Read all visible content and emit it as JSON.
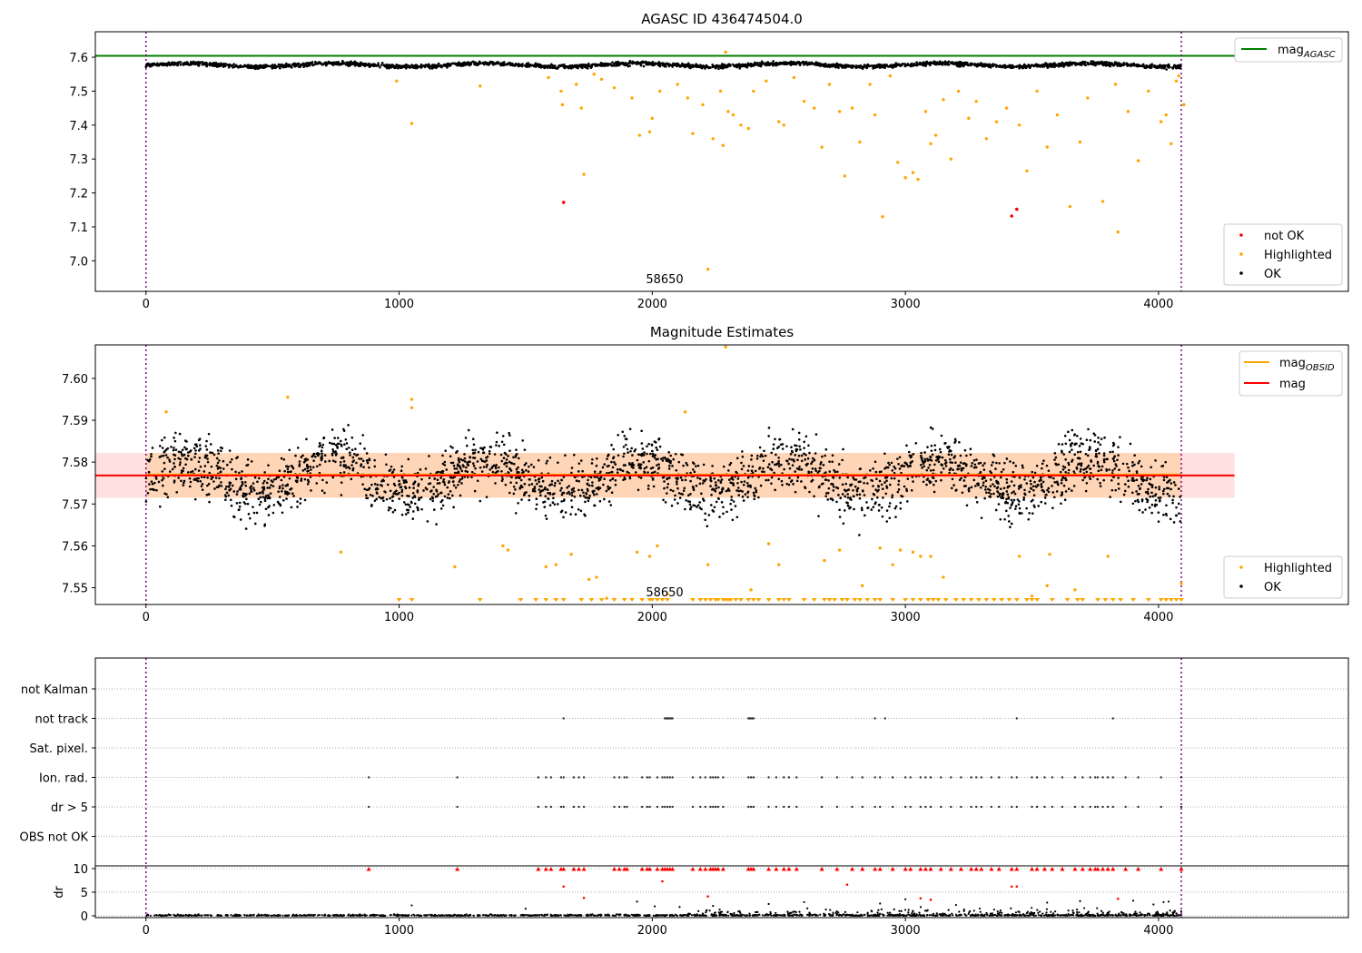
{
  "chart_data": [
    {
      "type": "scatter",
      "title": "AGASC ID 436474504.0",
      "xlim": [
        -200,
        4750
      ],
      "ylim": [
        6.91,
        7.675
      ],
      "xticks": [
        0,
        1000,
        2000,
        3000,
        4000
      ],
      "yticks": [
        7.0,
        7.1,
        7.2,
        7.3,
        7.4,
        7.5,
        7.6
      ],
      "ytick_labels": [
        "7.0",
        "7.1",
        "7.2",
        "7.3",
        "7.4",
        "7.5",
        "7.6"
      ],
      "annotation": {
        "text": "58650",
        "x": 2040,
        "y": 6.95
      },
      "vlines": [
        0,
        4090
      ],
      "hlines": [
        {
          "name": "mag_AGASC",
          "y": 7.604,
          "x": [
            -200,
            4300
          ],
          "color": "#008000"
        }
      ],
      "legend_upper": {
        "position": "top-right",
        "entries": [
          {
            "label": "mag",
            "sub": "AGASC",
            "kind": "line",
            "color": "#008000"
          }
        ]
      },
      "legend_lower": {
        "position": "bottom-right",
        "entries": [
          {
            "label": "not OK",
            "kind": "dot",
            "color": "#ff0000"
          },
          {
            "label": "Highlighted",
            "kind": "dot",
            "color": "#ffa500"
          },
          {
            "label": "OK",
            "kind": "dot",
            "color": "#000000"
          }
        ]
      },
      "ok_band": {
        "x": [
          0,
          4090
        ],
        "center": 7.577,
        "amplitude": 0.005,
        "noise": 0.004
      },
      "highlighted": [
        [
          1050,
          7.405
        ],
        [
          990,
          7.53
        ],
        [
          1320,
          7.515
        ],
        [
          1590,
          7.54
        ],
        [
          1640,
          7.5
        ],
        [
          1645,
          7.46
        ],
        [
          1700,
          7.52
        ],
        [
          1720,
          7.45
        ],
        [
          1730,
          7.255
        ],
        [
          1770,
          7.55
        ],
        [
          1800,
          7.535
        ],
        [
          1850,
          7.51
        ],
        [
          1920,
          7.48
        ],
        [
          1950,
          7.37
        ],
        [
          1990,
          7.38
        ],
        [
          2000,
          7.42
        ],
        [
          2030,
          7.5
        ],
        [
          2100,
          7.52
        ],
        [
          2140,
          7.48
        ],
        [
          2160,
          7.375
        ],
        [
          2200,
          7.46
        ],
        [
          2220,
          6.975
        ],
        [
          2240,
          7.36
        ],
        [
          2270,
          7.5
        ],
        [
          2280,
          7.34
        ],
        [
          2290,
          7.615
        ],
        [
          2300,
          7.44
        ],
        [
          2320,
          7.43
        ],
        [
          2350,
          7.4
        ],
        [
          2380,
          7.39
        ],
        [
          2400,
          7.5
        ],
        [
          2450,
          7.53
        ],
        [
          2500,
          7.41
        ],
        [
          2520,
          7.4
        ],
        [
          2560,
          7.54
        ],
        [
          2600,
          7.47
        ],
        [
          2640,
          7.45
        ],
        [
          2670,
          7.335
        ],
        [
          2700,
          7.52
        ],
        [
          2740,
          7.44
        ],
        [
          2760,
          7.25
        ],
        [
          2790,
          7.45
        ],
        [
          2820,
          7.35
        ],
        [
          2860,
          7.52
        ],
        [
          2880,
          7.43
        ],
        [
          2910,
          7.13
        ],
        [
          2940,
          7.545
        ],
        [
          2970,
          7.29
        ],
        [
          3000,
          7.245
        ],
        [
          3030,
          7.26
        ],
        [
          3050,
          7.24
        ],
        [
          3080,
          7.44
        ],
        [
          3100,
          7.345
        ],
        [
          3120,
          7.37
        ],
        [
          3150,
          7.475
        ],
        [
          3180,
          7.3
        ],
        [
          3210,
          7.5
        ],
        [
          3250,
          7.42
        ],
        [
          3280,
          7.47
        ],
        [
          3320,
          7.36
        ],
        [
          3360,
          7.41
        ],
        [
          3400,
          7.45
        ],
        [
          3450,
          7.4
        ],
        [
          3480,
          7.265
        ],
        [
          3520,
          7.5
        ],
        [
          3560,
          7.335
        ],
        [
          3600,
          7.43
        ],
        [
          3650,
          7.16
        ],
        [
          3690,
          7.35
        ],
        [
          3720,
          7.48
        ],
        [
          3780,
          7.175
        ],
        [
          3830,
          7.52
        ],
        [
          3840,
          7.085
        ],
        [
          3880,
          7.44
        ],
        [
          3920,
          7.295
        ],
        [
          3960,
          7.5
        ],
        [
          4010,
          7.41
        ],
        [
          4030,
          7.43
        ],
        [
          4050,
          7.345
        ],
        [
          4070,
          7.53
        ],
        [
          4080,
          7.545
        ],
        [
          4100,
          7.46
        ]
      ],
      "not_ok": [
        [
          1650,
          7.172
        ],
        [
          3420,
          7.132
        ],
        [
          3440,
          7.152
        ]
      ]
    },
    {
      "type": "scatter",
      "title": "Magnitude Estimates",
      "xlim": [
        -200,
        4750
      ],
      "ylim": [
        7.546,
        7.608
      ],
      "xticks": [
        0,
        1000,
        2000,
        3000,
        4000
      ],
      "yticks": [
        7.55,
        7.56,
        7.57,
        7.58,
        7.59,
        7.6
      ],
      "ytick_labels": [
        "7.55",
        "7.56",
        "7.57",
        "7.58",
        "7.59",
        "7.60"
      ],
      "annotation": {
        "text": "58650",
        "x": 2040,
        "y": 7.5475
      },
      "vlines": [
        0,
        4090
      ],
      "mag_line": {
        "y": 7.5768,
        "x": [
          -200,
          4300
        ],
        "band": [
          7.5715,
          7.5822
        ],
        "color": "#ff0000"
      },
      "mag_obsid": {
        "y": 7.5768,
        "x": [
          0,
          4090
        ],
        "band": [
          7.5715,
          7.5822
        ],
        "color": "#ffa500"
      },
      "legend_upper": {
        "position": "top-right",
        "entries": [
          {
            "label": "mag",
            "sub": "OBSID",
            "kind": "line",
            "color": "#ffa500"
          },
          {
            "label": "mag",
            "sub": "",
            "kind": "line",
            "color": "#ff0000"
          }
        ]
      },
      "legend_lower": {
        "position": "bottom-right",
        "entries": [
          {
            "label": "Highlighted",
            "kind": "dot",
            "color": "#ffa500"
          },
          {
            "label": "OK",
            "kind": "dot",
            "color": "#000000"
          }
        ]
      },
      "ok_band": {
        "x": [
          0,
          4090
        ],
        "center": 7.5765,
        "amplitude": 0.004,
        "noise": 0.005
      },
      "highlighted": [
        [
          80,
          7.592
        ],
        [
          560,
          7.5955
        ],
        [
          770,
          7.5585
        ],
        [
          1050,
          7.595
        ],
        [
          1050,
          7.593
        ],
        [
          1220,
          7.555
        ],
        [
          1410,
          7.56
        ],
        [
          1430,
          7.559
        ],
        [
          1580,
          7.555
        ],
        [
          1620,
          7.5555
        ],
        [
          1680,
          7.558
        ],
        [
          1750,
          7.552
        ],
        [
          1780,
          7.5525
        ],
        [
          1820,
          7.5475
        ],
        [
          1940,
          7.5585
        ],
        [
          1990,
          7.5575
        ],
        [
          2020,
          7.56
        ],
        [
          2060,
          7.5485
        ],
        [
          2130,
          7.592
        ],
        [
          2220,
          7.5555
        ],
        [
          2290,
          7.6075
        ],
        [
          2390,
          7.5495
        ],
        [
          2460,
          7.5605
        ],
        [
          2500,
          7.5555
        ],
        [
          2680,
          7.5565
        ],
        [
          2740,
          7.559
        ],
        [
          2830,
          7.5505
        ],
        [
          2900,
          7.5595
        ],
        [
          2950,
          7.5555
        ],
        [
          2980,
          7.559
        ],
        [
          3030,
          7.5585
        ],
        [
          3060,
          7.5575
        ],
        [
          3100,
          7.5575
        ],
        [
          3150,
          7.5525
        ],
        [
          3450,
          7.5575
        ],
        [
          3500,
          7.548
        ],
        [
          3570,
          7.558
        ],
        [
          3560,
          7.5505
        ],
        [
          3670,
          7.5495
        ],
        [
          3800,
          7.5575
        ],
        [
          4090,
          7.551
        ]
      ],
      "below_range_x": [
        1000,
        1050,
        1320,
        1480,
        1540,
        1580,
        1620,
        1650,
        1720,
        1760,
        1800,
        1850,
        1890,
        1920,
        1960,
        1990,
        2000,
        2020,
        2040,
        2060,
        2160,
        2190,
        2210,
        2230,
        2250,
        2260,
        2280,
        2290,
        2300,
        2310,
        2330,
        2350,
        2380,
        2400,
        2420,
        2460,
        2500,
        2520,
        2540,
        2600,
        2640,
        2680,
        2700,
        2720,
        2750,
        2770,
        2800,
        2820,
        2850,
        2880,
        2900,
        2950,
        3000,
        3030,
        3060,
        3090,
        3110,
        3130,
        3160,
        3200,
        3230,
        3260,
        3290,
        3320,
        3350,
        3380,
        3410,
        3440,
        3480,
        3500,
        3520,
        3580,
        3640,
        3680,
        3700,
        3760,
        3790,
        3820,
        3850,
        3900,
        3960,
        4010,
        4030,
        4050,
        4070,
        4090
      ]
    },
    {
      "type": "scatter",
      "xlim": [
        -200,
        4750
      ],
      "xticks": [
        0,
        1000,
        2000,
        3000,
        4000
      ],
      "vlines": [
        0,
        4090
      ],
      "flag_rows": [
        "not Kalman",
        "not track",
        "Sat. pixel.",
        "Ion. rad.",
        "dr > 5",
        "OBS not OK"
      ],
      "flag_points": {
        "not track": [
          1650,
          2050,
          2055,
          2060,
          2065,
          2070,
          2075,
          2080,
          2380,
          2385,
          2390,
          2395,
          2400,
          2880,
          2920,
          3440,
          3820
        ],
        "ion_dr": [
          880,
          1230,
          1550,
          1580,
          1600,
          1640,
          1650,
          1690,
          1710,
          1730,
          1850,
          1870,
          1890,
          1900,
          1960,
          1980,
          1990,
          2020,
          2040,
          2050,
          2060,
          2070,
          2080,
          2160,
          2190,
          2210,
          2230,
          2240,
          2250,
          2260,
          2280,
          2380,
          2390,
          2400,
          2460,
          2490,
          2520,
          2540,
          2570,
          2670,
          2730,
          2790,
          2830,
          2880,
          2900,
          2950,
          3000,
          3020,
          3060,
          3080,
          3100,
          3140,
          3180,
          3220,
          3260,
          3280,
          3300,
          3340,
          3370,
          3420,
          3440,
          3500,
          3520,
          3550,
          3580,
          3620,
          3670,
          3700,
          3730,
          3750,
          3760,
          3780,
          3800,
          3820,
          3870,
          3920,
          4010,
          4090
        ]
      },
      "dr_ylim": [
        -0.5,
        10.5
      ],
      "dr_yticks": [
        0,
        5,
        10
      ],
      "dr_ylabel": "dr",
      "dr_clipped_x": [
        880,
        1230,
        1550,
        1580,
        1600,
        1640,
        1650,
        1690,
        1710,
        1730,
        1850,
        1870,
        1890,
        1900,
        1960,
        1980,
        1990,
        2020,
        2040,
        2050,
        2060,
        2070,
        2080,
        2160,
        2190,
        2210,
        2230,
        2240,
        2250,
        2260,
        2280,
        2380,
        2390,
        2400,
        2460,
        2490,
        2520,
        2540,
        2570,
        2670,
        2730,
        2790,
        2830,
        2880,
        2900,
        2950,
        3000,
        3020,
        3060,
        3080,
        3100,
        3140,
        3180,
        3220,
        3260,
        3280,
        3300,
        3340,
        3370,
        3420,
        3440,
        3500,
        3520,
        3550,
        3580,
        3620,
        3670,
        3700,
        3730,
        3750,
        3760,
        3780,
        3800,
        3820,
        3870,
        3920,
        4010,
        4090
      ],
      "dr_red_points": [
        [
          1650,
          6.2
        ],
        [
          1730,
          3.8
        ],
        [
          2040,
          7.3
        ],
        [
          2220,
          4.1
        ],
        [
          2770,
          6.6
        ],
        [
          3060,
          3.7
        ],
        [
          3100,
          3.4
        ],
        [
          3420,
          6.2
        ],
        [
          3440,
          6.2
        ],
        [
          3840,
          3.6
        ]
      ],
      "dr_black_points": [
        [
          1050,
          2.2
        ],
        [
          1500,
          1.5
        ],
        [
          1940,
          3.0
        ],
        [
          2010,
          2.0
        ],
        [
          2240,
          2.1
        ],
        [
          2460,
          2.5
        ],
        [
          2600,
          2.9
        ],
        [
          2900,
          2.6
        ],
        [
          3000,
          3.5
        ],
        [
          3200,
          2.3
        ],
        [
          3560,
          2.8
        ],
        [
          3690,
          3.1
        ],
        [
          3900,
          3.2
        ],
        [
          3980,
          2.4
        ],
        [
          4020,
          2.9
        ],
        [
          4040,
          3.0
        ]
      ]
    }
  ]
}
